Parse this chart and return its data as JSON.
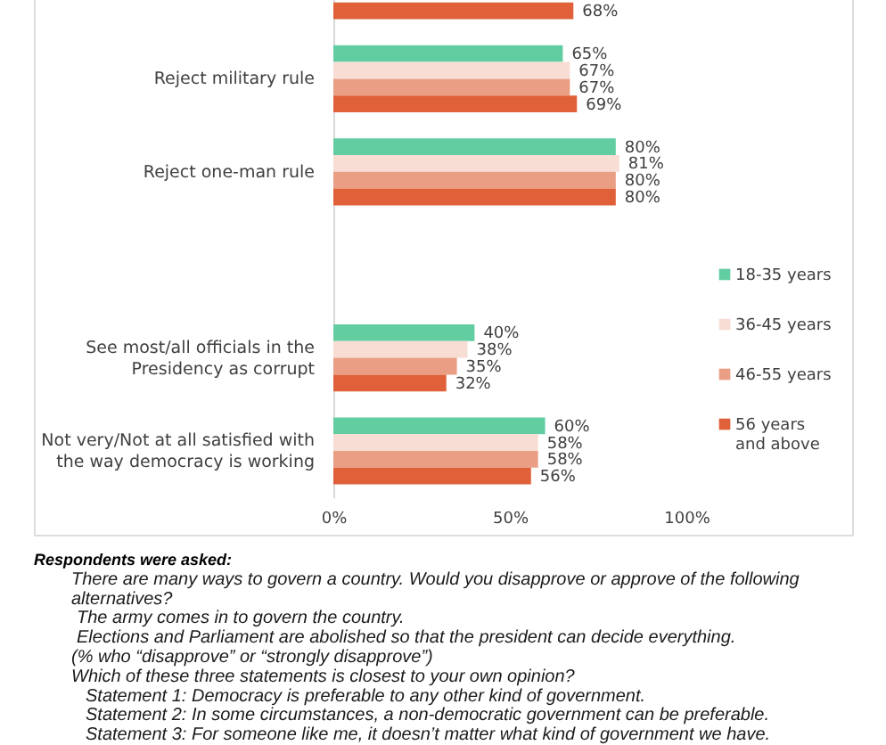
{
  "chart_data": {
    "type": "bar",
    "orientation": "horizontal",
    "categories": [
      null,
      "Reject military rule",
      "Reject one-man rule",
      null,
      "See most/all officials in the Presidency as corrupt",
      "Not very/Not at all satisfied with the way democracy is working"
    ],
    "series": [
      {
        "name": "18-35 years",
        "color": "#62cda1",
        "values": [
          null,
          65,
          80,
          null,
          40,
          60
        ],
        "value_labels": [
          null,
          "65%",
          "80%",
          null,
          "40%",
          "60%"
        ]
      },
      {
        "name": "36-45 years",
        "color": "#f7ddd3",
        "values": [
          null,
          67,
          81,
          null,
          38,
          58
        ],
        "value_labels": [
          null,
          "67%",
          "81%",
          null,
          "38%",
          "58%"
        ]
      },
      {
        "name": "46-55 years",
        "color": "#ea9e83",
        "values": [
          null,
          67,
          80,
          null,
          35,
          58
        ],
        "value_labels": [
          null,
          "67%",
          "80%",
          null,
          "35%",
          "58%"
        ]
      },
      {
        "name": "56 years and above",
        "color": "#e0603a",
        "values": [
          68,
          69,
          80,
          null,
          32,
          56
        ],
        "value_labels": [
          "68%",
          "69%",
          "80%",
          null,
          "32%",
          "56%"
        ]
      }
    ],
    "xlim": [
      0,
      100
    ],
    "xticks": [
      {
        "value": 0,
        "label": "0%"
      },
      {
        "value": 50,
        "label": "50%"
      },
      {
        "value": 100,
        "label": "100%"
      }
    ],
    "legend": "right",
    "annotations": [
      "Respondents were asked:",
      "There are many ways to govern a country. Would you disapprove or approve of the following alternatives?",
      "The army comes in to govern the country.",
      "Elections and Parliament are abolished so that the president can decide everything.",
      "(% who “disapprove” or “strongly disapprove”)",
      "Which of these three statements is closest to your own opinion?",
      "Statement 1: Democracy is preferable to any other kind of government.",
      "Statement 2: In some circumstances, a non-democratic government can be preferable.",
      "Statement 3: For someone like me, it doesn’t matter what kind of government we have."
    ]
  }
}
